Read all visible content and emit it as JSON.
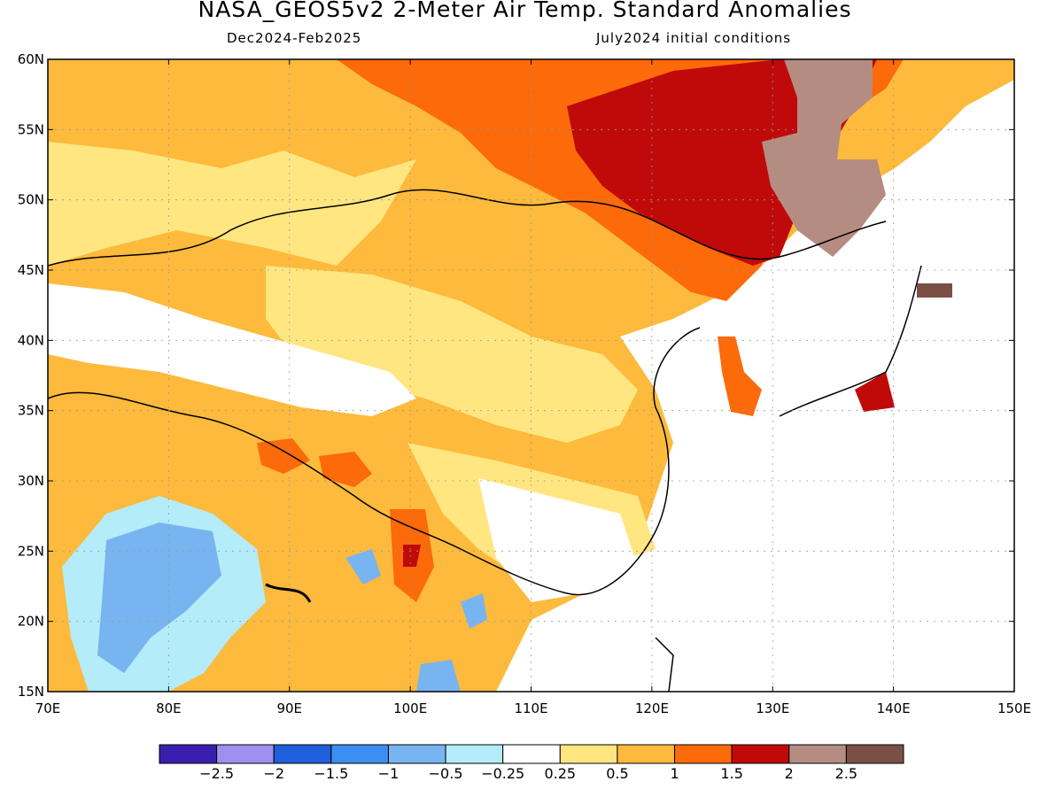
{
  "title": "NASA_GEOS5v2 2-Meter Air Temp. Standard Anomalies",
  "period": "Dec2024-Feb2025",
  "init": "July2024 initial conditions",
  "lat_ticks": [
    "60N",
    "55N",
    "50N",
    "45N",
    "40N",
    "35N",
    "30N",
    "25N",
    "20N",
    "15N"
  ],
  "lon_ticks": [
    "70E",
    "80E",
    "90E",
    "100E",
    "110E",
    "120E",
    "130E",
    "140E",
    "150E"
  ],
  "colorbar": {
    "colors": [
      "#3a1fae",
      "#a08ff0",
      "#1f5fdc",
      "#3c8ef0",
      "#78b4f0",
      "#b4ecfa",
      "#ffffff",
      "#ffe680",
      "#fdba3c",
      "#fc6a0a",
      "#c00a0a",
      "#b48c82",
      "#7a5046"
    ],
    "labels": [
      "-2.5",
      "-2",
      "-1.5",
      "-1",
      "-0.5",
      "-0.25",
      "0.25",
      "0.5",
      "1",
      "1.5",
      "2",
      "2.5"
    ]
  },
  "colors": {
    "warm1": "#ffe680",
    "warm2": "#fdba3c",
    "warm3": "#fc6a0a",
    "warm4": "#c00a0a",
    "warm5": "#b48c82",
    "cool1": "#b4ecfa",
    "cool2": "#78b4f0",
    "land_line": "#000000"
  }
}
